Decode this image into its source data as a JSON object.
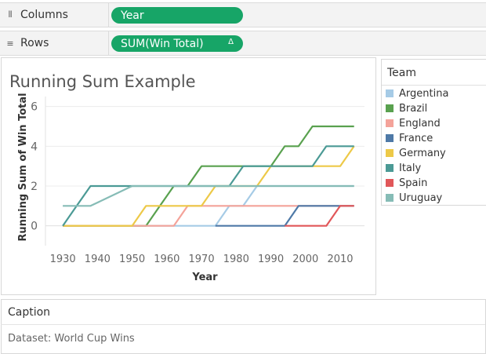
{
  "shelves": {
    "columns": {
      "label": "Columns",
      "pill": "Year"
    },
    "rows": {
      "label": "Rows",
      "pill": "SUM(Win Total)",
      "pill_marker": "Δ"
    }
  },
  "view": {
    "title": "Running Sum Example"
  },
  "legend": {
    "title": "Team",
    "items": [
      {
        "label": "Argentina",
        "color": "#a6cbe6"
      },
      {
        "label": "Brazil",
        "color": "#59a14f"
      },
      {
        "label": "England",
        "color": "#f4a39a"
      },
      {
        "label": "France",
        "color": "#4e79a7"
      },
      {
        "label": "Germany",
        "color": "#edc948"
      },
      {
        "label": "Italy",
        "color": "#4b9a95"
      },
      {
        "label": "Spain",
        "color": "#e15759"
      },
      {
        "label": "Uruguay",
        "color": "#86bcb6"
      }
    ]
  },
  "caption": {
    "title": "Caption",
    "text": "Dataset: World Cup Wins"
  },
  "chart_data": {
    "type": "line",
    "xlabel": "Year",
    "ylabel": "Running Sum of Win Total",
    "xlim": [
      1925,
      2017
    ],
    "ylim": [
      -1,
      6.5
    ],
    "x_ticks": [
      "1930",
      "1940",
      "1950",
      "1960",
      "1970",
      "1980",
      "1990",
      "2000",
      "2010"
    ],
    "y_ticks": [
      "0",
      "2",
      "4",
      "6"
    ],
    "grid": "horizontal",
    "series": [
      {
        "name": "Argentina",
        "color": "#a6cbe6",
        "points": [
          [
            1930,
            0
          ],
          [
            1974,
            0
          ],
          [
            1978,
            1
          ],
          [
            1982,
            1
          ],
          [
            1986,
            2
          ],
          [
            2014,
            2
          ]
        ]
      },
      {
        "name": "Brazil",
        "color": "#59a14f",
        "points": [
          [
            1930,
            0
          ],
          [
            1954,
            0
          ],
          [
            1958,
            1
          ],
          [
            1962,
            2
          ],
          [
            1966,
            2
          ],
          [
            1970,
            3
          ],
          [
            1990,
            3
          ],
          [
            1994,
            4
          ],
          [
            1998,
            4
          ],
          [
            2002,
            5
          ],
          [
            2014,
            5
          ]
        ]
      },
      {
        "name": "England",
        "color": "#f4a39a",
        "points": [
          [
            1930,
            0
          ],
          [
            1962,
            0
          ],
          [
            1966,
            1
          ],
          [
            2014,
            1
          ]
        ]
      },
      {
        "name": "France",
        "color": "#4e79a7",
        "points": [
          [
            1974,
            0
          ],
          [
            1994,
            0
          ],
          [
            1998,
            1
          ],
          [
            2014,
            1
          ]
        ]
      },
      {
        "name": "Germany",
        "color": "#edc948",
        "points": [
          [
            1930,
            0
          ],
          [
            1950,
            0
          ],
          [
            1954,
            1
          ],
          [
            1970,
            1
          ],
          [
            1974,
            2
          ],
          [
            1986,
            2
          ],
          [
            1990,
            3
          ],
          [
            2010,
            3
          ],
          [
            2014,
            4
          ]
        ]
      },
      {
        "name": "Italy",
        "color": "#4b9a95",
        "points": [
          [
            1930,
            0
          ],
          [
            1934,
            1
          ],
          [
            1938,
            2
          ],
          [
            1978,
            2
          ],
          [
            1982,
            3
          ],
          [
            2002,
            3
          ],
          [
            2006,
            4
          ],
          [
            2014,
            4
          ]
        ]
      },
      {
        "name": "Spain",
        "color": "#e15759",
        "points": [
          [
            1994,
            0
          ],
          [
            2006,
            0
          ],
          [
            2010,
            1
          ],
          [
            2014,
            1
          ]
        ]
      },
      {
        "name": "Uruguay",
        "color": "#86bcb6",
        "points": [
          [
            1930,
            1
          ],
          [
            1938,
            1
          ],
          [
            1950,
            2
          ],
          [
            2014,
            2
          ]
        ]
      }
    ]
  }
}
